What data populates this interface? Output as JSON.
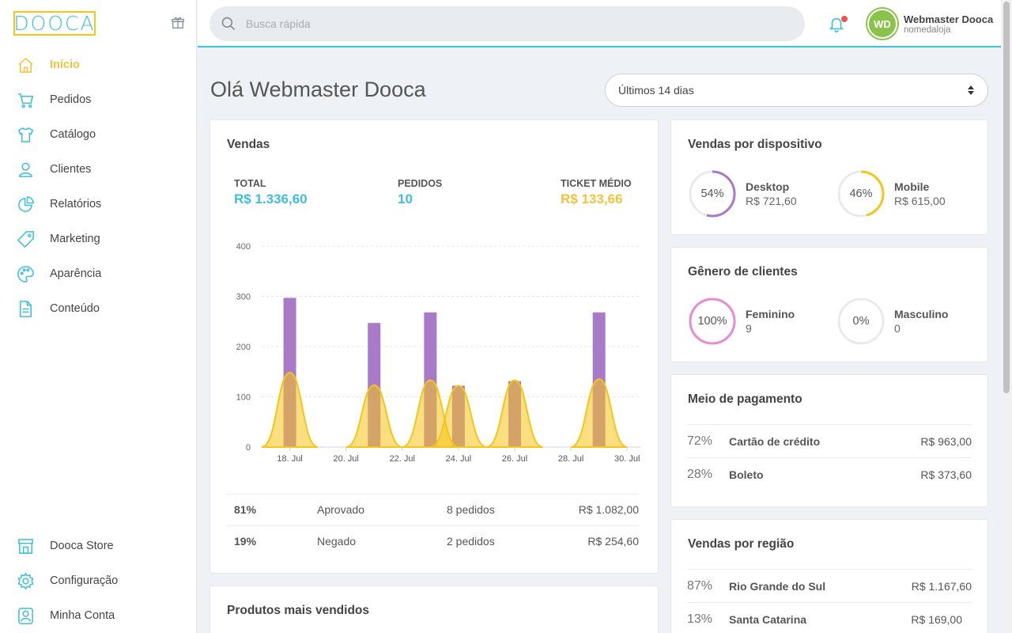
{
  "logo": {
    "text": "DOOCA"
  },
  "nav": {
    "items": [
      {
        "label": "Início",
        "icon": "home-icon"
      },
      {
        "label": "Pedidos",
        "icon": "cart-icon"
      },
      {
        "label": "Catálogo",
        "icon": "shirt-icon"
      },
      {
        "label": "Clientes",
        "icon": "user-icon"
      },
      {
        "label": "Relatórios",
        "icon": "pie-chart-icon"
      },
      {
        "label": "Marketing",
        "icon": "tag-icon"
      },
      {
        "label": "Aparência",
        "icon": "palette-icon"
      },
      {
        "label": "Conteúdo",
        "icon": "document-icon"
      }
    ],
    "bottom": [
      {
        "label": "Dooca Store",
        "icon": "store-icon"
      },
      {
        "label": "Configuração",
        "icon": "gear-icon"
      },
      {
        "label": "Minha Conta",
        "icon": "account-icon"
      }
    ]
  },
  "header": {
    "search_placeholder": "Busca rápida",
    "user_initials": "WD",
    "user_name": "Webmaster Dooca",
    "store_name": "nomedaloja"
  },
  "page": {
    "greeting": "Olá Webmaster Dooca",
    "period": "Últimos 14 dias"
  },
  "vendas": {
    "title": "Vendas",
    "total_label": "TOTAL",
    "total_value": "R$ 1.336,60",
    "pedidos_label": "PEDIDOS",
    "pedidos_value": "10",
    "ticket_label": "TICKET MÉDIO",
    "ticket_value": "R$ 133,66",
    "rows": [
      {
        "pct": "81%",
        "status": "Aprovado",
        "orders": "8 pedidos",
        "value": "R$ 1.082,00"
      },
      {
        "pct": "19%",
        "status": "Negado",
        "orders": "2 pedidos",
        "value": "R$ 254,60"
      }
    ]
  },
  "chart_data": {
    "type": "bar",
    "x_ticks": [
      "18. Jul",
      "20. Jul",
      "22. Jul",
      "24. Jul",
      "26. Jul",
      "28. Jul",
      "30. Jul"
    ],
    "y_ticks": [
      0,
      100,
      200,
      300,
      400
    ],
    "ylim": [
      0,
      400
    ],
    "x_day_range": [
      17,
      30.5
    ],
    "series": [
      {
        "type": "bar",
        "color": "#a97ac8",
        "points": [
          [
            18,
            297
          ],
          [
            21,
            247
          ],
          [
            23,
            268
          ],
          [
            24,
            122
          ],
          [
            26,
            131
          ],
          [
            29,
            268
          ]
        ]
      },
      {
        "type": "area",
        "color": "#f5c518",
        "points": [
          [
            18,
            148
          ],
          [
            21,
            123
          ],
          [
            23,
            133
          ],
          [
            24,
            122
          ],
          [
            26,
            133
          ],
          [
            29,
            135
          ]
        ]
      }
    ]
  },
  "produtos": {
    "title": "Produtos mais vendidos"
  },
  "dispositivo": {
    "title": "Vendas por dispositivo",
    "items": [
      {
        "pct": "54%",
        "name": "Desktop",
        "value": "R$ 721,60",
        "fraction": 0.54,
        "color": "#a97ac8"
      },
      {
        "pct": "46%",
        "name": "Mobile",
        "value": "R$ 615,00",
        "fraction": 0.46,
        "color": "#f5c518"
      }
    ]
  },
  "genero": {
    "title": "Gênero de clientes",
    "items": [
      {
        "pct": "100%",
        "name": "Feminino",
        "value": "9",
        "fraction": 1.0,
        "color": "#e98ad4"
      },
      {
        "pct": "0%",
        "name": "Masculino",
        "value": "0",
        "fraction": 0,
        "color": "#5aa9e6"
      }
    ]
  },
  "pagamento": {
    "title": "Meio de pagamento",
    "rows": [
      {
        "pct": "72%",
        "name": "Cartão de crédito",
        "value": "R$ 963,00"
      },
      {
        "pct": "28%",
        "name": "Boleto",
        "value": "R$ 373,60"
      }
    ]
  },
  "regiao": {
    "title": "Vendas por região",
    "rows": [
      {
        "pct": "87%",
        "name": "Rio Grande do Sul",
        "value": "R$ 1.167,60"
      },
      {
        "pct": "13%",
        "name": "Santa Catarina",
        "value": "R$ 169,00"
      }
    ]
  },
  "colors": {
    "accent": "#3dbfd9",
    "active": "#f2c23c",
    "purple": "#a97ac8",
    "yellow": "#f5c518"
  }
}
